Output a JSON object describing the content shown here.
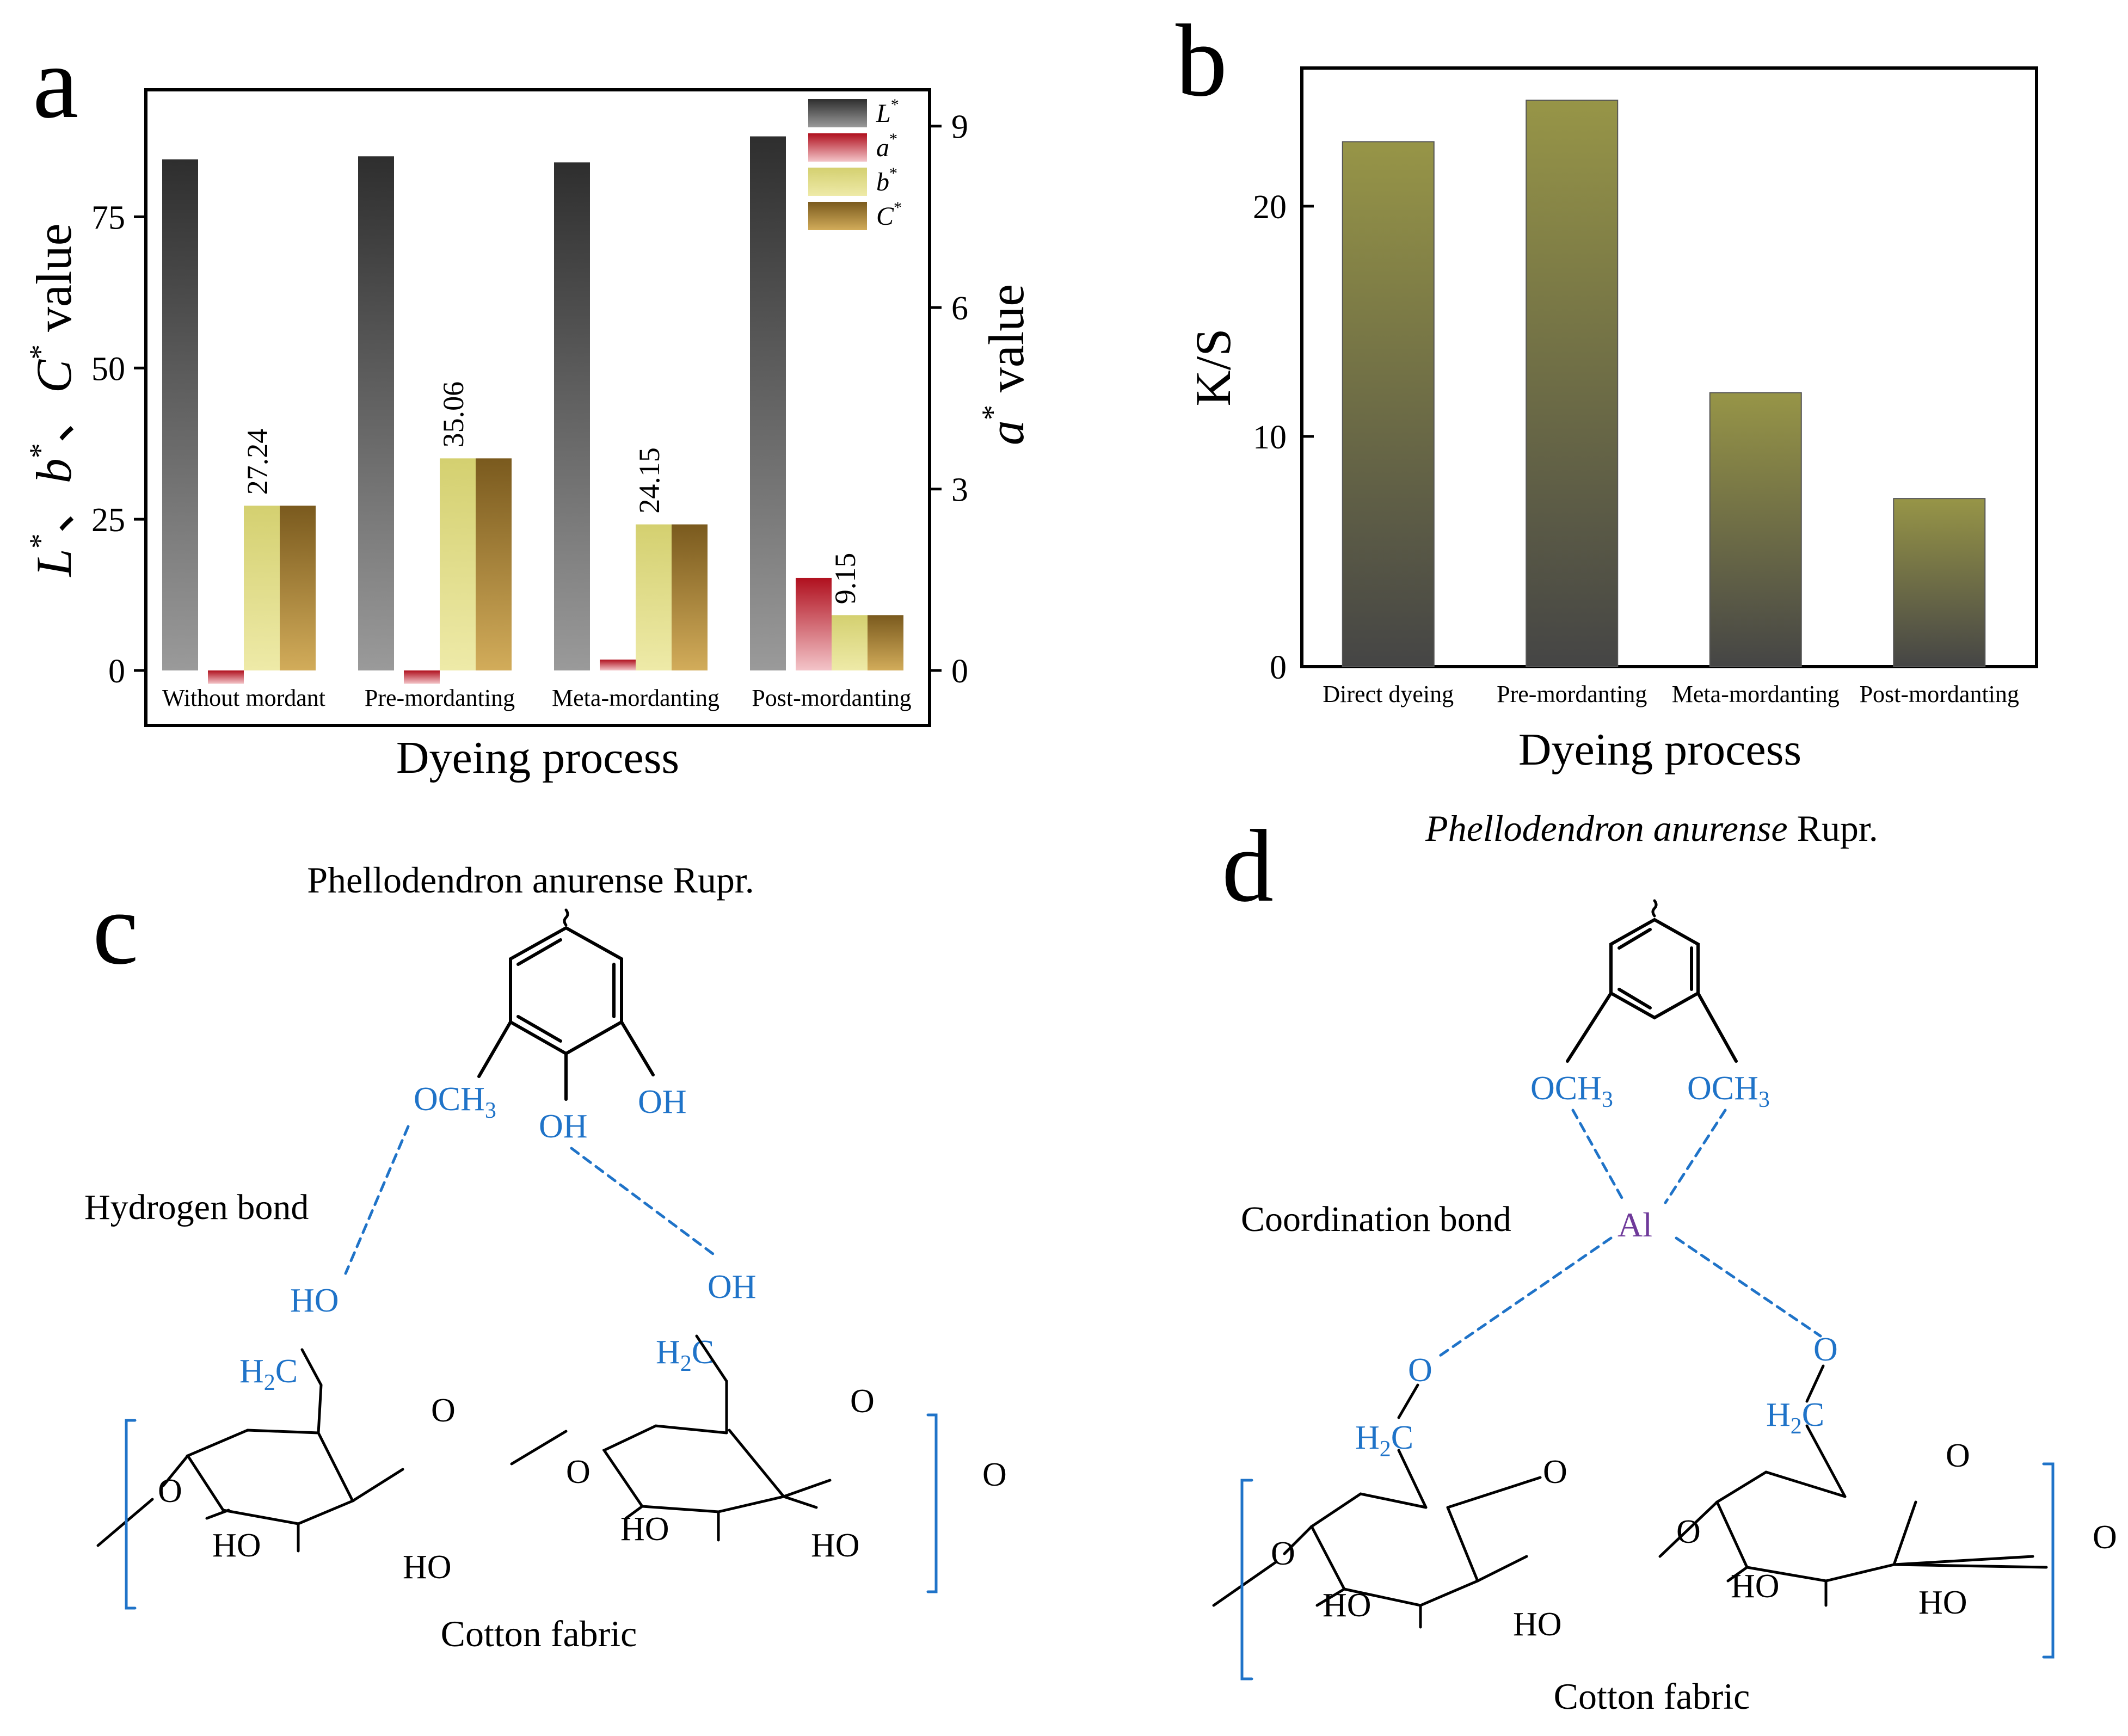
{
  "chart_data": [
    {
      "panel": "a",
      "type": "bar",
      "xlabel": "Dyeing process",
      "ylabel_left_parts": [
        "L",
        "*",
        "、",
        "b",
        "*",
        "、",
        "C",
        "*",
        " value"
      ],
      "ylabel_right_parts": [
        "a",
        "*",
        " value"
      ],
      "categories": [
        "Without mordant",
        "Pre-mordanting",
        "Meta-mordanting",
        "Post-mordanting"
      ],
      "ylim_left": [
        0,
        96
      ],
      "ylim_right": [
        0,
        9.6
      ],
      "yticks_left": [
        0,
        25,
        50,
        75
      ],
      "yticks_right": [
        0,
        3,
        6,
        9
      ],
      "series": [
        {
          "name": "L*",
          "base": "L",
          "sup": "*",
          "axis": "left",
          "values": [
            84.5,
            85.0,
            84.0,
            88.3
          ]
        },
        {
          "name": "a*",
          "base": "a",
          "sup": "*",
          "axis": "right",
          "values": [
            -0.22,
            -0.22,
            0.18,
            1.53
          ]
        },
        {
          "name": "b*",
          "base": "b",
          "sup": "*",
          "axis": "left",
          "values": [
            27.24,
            35.06,
            24.15,
            9.15
          ]
        },
        {
          "name": "C*",
          "base": "C",
          "sup": "*",
          "axis": "left",
          "values": [
            27.24,
            35.06,
            24.15,
            9.15
          ]
        }
      ],
      "data_labels": [
        "27.24",
        "35.06",
        "24.15",
        "9.15"
      ],
      "legend_position": "top-right",
      "colors": {
        "L": "#3c3c3c",
        "a": "#c0192a",
        "b": "#d6d27a",
        "C": "#8d6a2a"
      }
    },
    {
      "panel": "b",
      "type": "bar",
      "xlabel": "Dyeing process",
      "ylabel": "K/S",
      "categories": [
        "Direct dyeing",
        "Pre-mordanting",
        "Meta-mordanting",
        "Post-mordanting"
      ],
      "values": [
        22.8,
        24.6,
        11.9,
        7.3
      ],
      "ylim": [
        0,
        26
      ],
      "yticks": [
        0,
        10,
        20
      ],
      "colors": {
        "top": "#969446",
        "bottom": "#464646"
      }
    }
  ],
  "panel_labels": {
    "a": "a",
    "b": "b",
    "c": "c",
    "d": "d"
  },
  "diagram_c": {
    "title": "Phellodendron anurense Rupr.",
    "bond_label": "Hydrogen bond",
    "substrate_label": "Cotton fabric",
    "groups": {
      "och3": "OCH",
      "och3_sub": "3",
      "oh": "OH",
      "ho": "HO",
      "h2c_h": "H",
      "h2c_sub": "2",
      "h2c_c": "C",
      "ring_o": "O"
    }
  },
  "diagram_d": {
    "title_italic": "Phellodendron anurense",
    "title_rest": " Rupr.",
    "bond_label": "Coordination bond",
    "metal": "Al",
    "substrate_label": "Cotton fabric",
    "groups": {
      "och3": "OCH",
      "och3_sub": "3",
      "ho": "HO",
      "h2c_h": "H",
      "h2c_sub": "2",
      "h2c_c": "C",
      "ring_o": "O"
    }
  }
}
